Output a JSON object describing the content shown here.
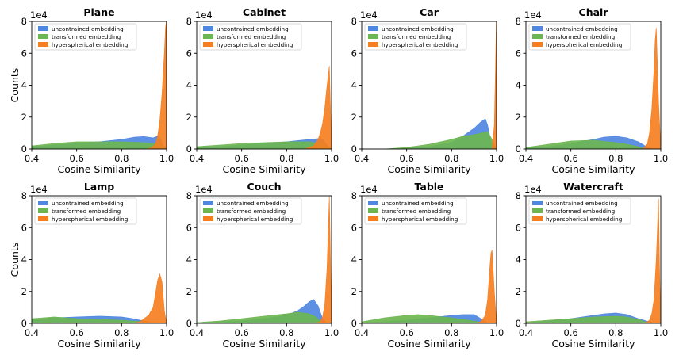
{
  "figure": {
    "xlabel": "Cosine Similarity",
    "ylabel": "Counts",
    "scale_label": "1e4",
    "y_ticks": [
      "0",
      "2",
      "4",
      "6",
      "8"
    ],
    "x_ticks": [
      "0.4",
      "0.6",
      "0.8",
      "1.0"
    ]
  },
  "legend": [
    {
      "name": "uncontrained embedding",
      "color": "#4f86e0"
    },
    {
      "name": "transformed embedding",
      "color": "#6cb650"
    },
    {
      "name": "hyperspherical embedding",
      "color": "#f57f20"
    }
  ],
  "chart_data": [
    {
      "type": "area",
      "title": "Plane",
      "xlim": [
        0.4,
        1.0
      ],
      "ylim": [
        0,
        8
      ],
      "units": "x 1e4 counts",
      "series": [
        {
          "name": "uncontrained embedding",
          "x": [
            0.4,
            0.5,
            0.6,
            0.7,
            0.8,
            0.86,
            0.9,
            0.94,
            0.96,
            0.975,
            0.985,
            1.0
          ],
          "y": [
            0.15,
            0.25,
            0.35,
            0.45,
            0.6,
            0.75,
            0.78,
            0.7,
            0.8,
            0.6,
            0.2,
            0.0
          ]
        },
        {
          "name": "transformed embedding",
          "x": [
            0.4,
            0.5,
            0.6,
            0.7,
            0.8,
            0.9,
            0.95,
            0.97,
            0.985,
            1.0
          ],
          "y": [
            0.2,
            0.35,
            0.45,
            0.45,
            0.45,
            0.4,
            0.35,
            0.3,
            0.15,
            0.0
          ]
        },
        {
          "name": "hyperspherical embedding",
          "x": [
            0.9,
            0.93,
            0.95,
            0.96,
            0.97,
            0.98,
            0.99,
            0.995,
            0.999,
            1.0
          ],
          "y": [
            0.0,
            0.05,
            0.3,
            0.8,
            1.8,
            3.5,
            6.0,
            7.6,
            8.0,
            0.0
          ]
        }
      ]
    },
    {
      "type": "area",
      "title": "Cabinet",
      "xlim": [
        0.4,
        1.0
      ],
      "ylim": [
        0,
        8
      ],
      "units": "x 1e4 counts",
      "series": [
        {
          "name": "uncontrained embedding",
          "x": [
            0.4,
            0.5,
            0.6,
            0.7,
            0.8,
            0.9,
            0.94,
            0.96,
            0.97,
            0.99,
            1.0
          ],
          "y": [
            0.1,
            0.15,
            0.25,
            0.35,
            0.45,
            0.6,
            0.65,
            0.6,
            0.4,
            0.1,
            0.0
          ]
        },
        {
          "name": "transformed embedding",
          "x": [
            0.4,
            0.5,
            0.6,
            0.7,
            0.8,
            0.9,
            0.95,
            0.98,
            1.0
          ],
          "y": [
            0.15,
            0.25,
            0.35,
            0.4,
            0.45,
            0.45,
            0.35,
            0.2,
            0.0
          ]
        },
        {
          "name": "hyperspherical embedding",
          "x": [
            0.88,
            0.92,
            0.94,
            0.95,
            0.96,
            0.97,
            0.98,
            0.99,
            1.0
          ],
          "y": [
            0.0,
            0.2,
            0.6,
            1.0,
            1.6,
            2.6,
            4.0,
            5.2,
            0.0
          ]
        }
      ]
    },
    {
      "type": "area",
      "title": "Car",
      "xlim": [
        0.4,
        1.0
      ],
      "ylim": [
        0,
        8
      ],
      "units": "x 1e4 counts",
      "series": [
        {
          "name": "uncontrained embedding",
          "x": [
            0.5,
            0.6,
            0.7,
            0.8,
            0.85,
            0.9,
            0.93,
            0.95,
            0.96,
            0.97,
            0.98,
            1.0
          ],
          "y": [
            0.0,
            0.05,
            0.15,
            0.4,
            0.8,
            1.3,
            1.7,
            1.9,
            1.5,
            0.8,
            0.3,
            0.0
          ]
        },
        {
          "name": "transformed embedding",
          "x": [
            0.5,
            0.6,
            0.7,
            0.8,
            0.85,
            0.9,
            0.93,
            0.96,
            0.98,
            1.0
          ],
          "y": [
            0.0,
            0.1,
            0.3,
            0.6,
            0.8,
            0.9,
            1.0,
            1.1,
            0.6,
            0.0
          ]
        },
        {
          "name": "hyperspherical embedding",
          "x": [
            0.98,
            0.99,
            0.995,
            0.999,
            1.0
          ],
          "y": [
            0.0,
            1.5,
            5.0,
            8.0,
            0.0
          ]
        }
      ]
    },
    {
      "type": "area",
      "title": "Chair",
      "xlim": [
        0.4,
        1.0
      ],
      "ylim": [
        0,
        8
      ],
      "units": "x 1e4 counts",
      "series": [
        {
          "name": "uncontrained embedding",
          "x": [
            0.4,
            0.5,
            0.6,
            0.7,
            0.75,
            0.8,
            0.85,
            0.9,
            0.93,
            0.95,
            0.97
          ],
          "y": [
            0.05,
            0.15,
            0.35,
            0.6,
            0.75,
            0.8,
            0.7,
            0.45,
            0.2,
            0.05,
            0.0
          ]
        },
        {
          "name": "transformed embedding",
          "x": [
            0.4,
            0.5,
            0.6,
            0.7,
            0.8,
            0.85,
            0.9,
            0.93
          ],
          "y": [
            0.1,
            0.3,
            0.5,
            0.55,
            0.4,
            0.3,
            0.15,
            0.0
          ]
        },
        {
          "name": "hyperspherical embedding",
          "x": [
            0.92,
            0.94,
            0.95,
            0.96,
            0.97,
            0.975,
            0.98,
            0.99,
            1.0
          ],
          "y": [
            0.0,
            0.3,
            1.0,
            2.5,
            5.0,
            6.8,
            7.6,
            3.0,
            0.0
          ]
        }
      ]
    },
    {
      "type": "area",
      "title": "Lamp",
      "xlim": [
        0.4,
        1.0
      ],
      "ylim": [
        0,
        8
      ],
      "units": "x 1e4 counts",
      "series": [
        {
          "name": "uncontrained embedding",
          "x": [
            0.4,
            0.5,
            0.6,
            0.7,
            0.8,
            0.85,
            0.9,
            0.92,
            0.95
          ],
          "y": [
            0.25,
            0.35,
            0.4,
            0.45,
            0.4,
            0.3,
            0.15,
            0.1,
            0.0
          ]
        },
        {
          "name": "transformed embedding",
          "x": [
            0.4,
            0.45,
            0.5,
            0.6,
            0.7,
            0.8,
            0.85,
            0.9,
            0.93
          ],
          "y": [
            0.3,
            0.35,
            0.4,
            0.3,
            0.25,
            0.2,
            0.15,
            0.1,
            0.0
          ]
        },
        {
          "name": "hyperspherical embedding",
          "x": [
            0.85,
            0.88,
            0.9,
            0.92,
            0.94,
            0.95,
            0.96,
            0.97,
            0.98,
            0.99,
            1.0
          ],
          "y": [
            0.0,
            0.1,
            0.3,
            0.5,
            1.0,
            1.8,
            2.7,
            3.1,
            2.6,
            0.8,
            0.0
          ]
        }
      ]
    },
    {
      "type": "area",
      "title": "Couch",
      "xlim": [
        0.4,
        1.0
      ],
      "ylim": [
        0,
        8
      ],
      "units": "x 1e4 counts",
      "series": [
        {
          "name": "uncontrained embedding",
          "x": [
            0.4,
            0.5,
            0.6,
            0.7,
            0.8,
            0.85,
            0.88,
            0.9,
            0.92,
            0.94,
            0.96,
            0.98
          ],
          "y": [
            0.05,
            0.1,
            0.15,
            0.3,
            0.5,
            0.8,
            1.1,
            1.35,
            1.5,
            1.1,
            0.3,
            0.0
          ]
        },
        {
          "name": "transformed embedding",
          "x": [
            0.4,
            0.5,
            0.6,
            0.7,
            0.8,
            0.85,
            0.9,
            0.93,
            0.95,
            0.97
          ],
          "y": [
            0.05,
            0.15,
            0.3,
            0.45,
            0.6,
            0.7,
            0.6,
            0.4,
            0.15,
            0.0
          ]
        },
        {
          "name": "hyperspherical embedding",
          "x": [
            0.93,
            0.95,
            0.96,
            0.97,
            0.98,
            0.99,
            1.0
          ],
          "y": [
            0.0,
            0.1,
            0.4,
            1.2,
            3.5,
            8.0,
            0.0
          ]
        }
      ]
    },
    {
      "type": "area",
      "title": "Table",
      "xlim": [
        0.4,
        1.0
      ],
      "ylim": [
        0,
        8
      ],
      "units": "x 1e4 counts",
      "series": [
        {
          "name": "uncontrained embedding",
          "x": [
            0.4,
            0.5,
            0.6,
            0.7,
            0.8,
            0.85,
            0.9,
            0.93,
            0.95,
            0.97
          ],
          "y": [
            0.05,
            0.1,
            0.2,
            0.35,
            0.5,
            0.55,
            0.55,
            0.3,
            0.1,
            0.0
          ]
        },
        {
          "name": "transformed embedding",
          "x": [
            0.4,
            0.5,
            0.6,
            0.65,
            0.7,
            0.8,
            0.9,
            0.95
          ],
          "y": [
            0.1,
            0.35,
            0.5,
            0.55,
            0.5,
            0.35,
            0.15,
            0.0
          ]
        },
        {
          "name": "hyperspherical embedding",
          "x": [
            0.9,
            0.93,
            0.95,
            0.96,
            0.97,
            0.975,
            0.98,
            0.99,
            1.0
          ],
          "y": [
            0.0,
            0.1,
            0.5,
            1.5,
            3.5,
            4.4,
            4.6,
            2.0,
            0.0
          ]
        }
      ]
    },
    {
      "type": "area",
      "title": "Watercraft",
      "xlim": [
        0.4,
        1.0
      ],
      "ylim": [
        0,
        8
      ],
      "units": "x 1e4 counts",
      "series": [
        {
          "name": "uncontrained embedding",
          "x": [
            0.4,
            0.5,
            0.6,
            0.7,
            0.75,
            0.8,
            0.85,
            0.9,
            0.95,
            0.98
          ],
          "y": [
            0.05,
            0.15,
            0.3,
            0.5,
            0.6,
            0.65,
            0.55,
            0.3,
            0.1,
            0.0
          ]
        },
        {
          "name": "transformed embedding",
          "x": [
            0.4,
            0.5,
            0.6,
            0.7,
            0.8,
            0.85,
            0.9,
            0.95
          ],
          "y": [
            0.1,
            0.2,
            0.3,
            0.4,
            0.45,
            0.4,
            0.25,
            0.0
          ]
        },
        {
          "name": "hyperspherical embedding",
          "x": [
            0.93,
            0.95,
            0.96,
            0.97,
            0.98,
            0.99,
            0.995,
            1.0
          ],
          "y": [
            0.0,
            0.2,
            0.6,
            1.5,
            4.0,
            7.8,
            3.0,
            0.0
          ]
        }
      ]
    }
  ]
}
